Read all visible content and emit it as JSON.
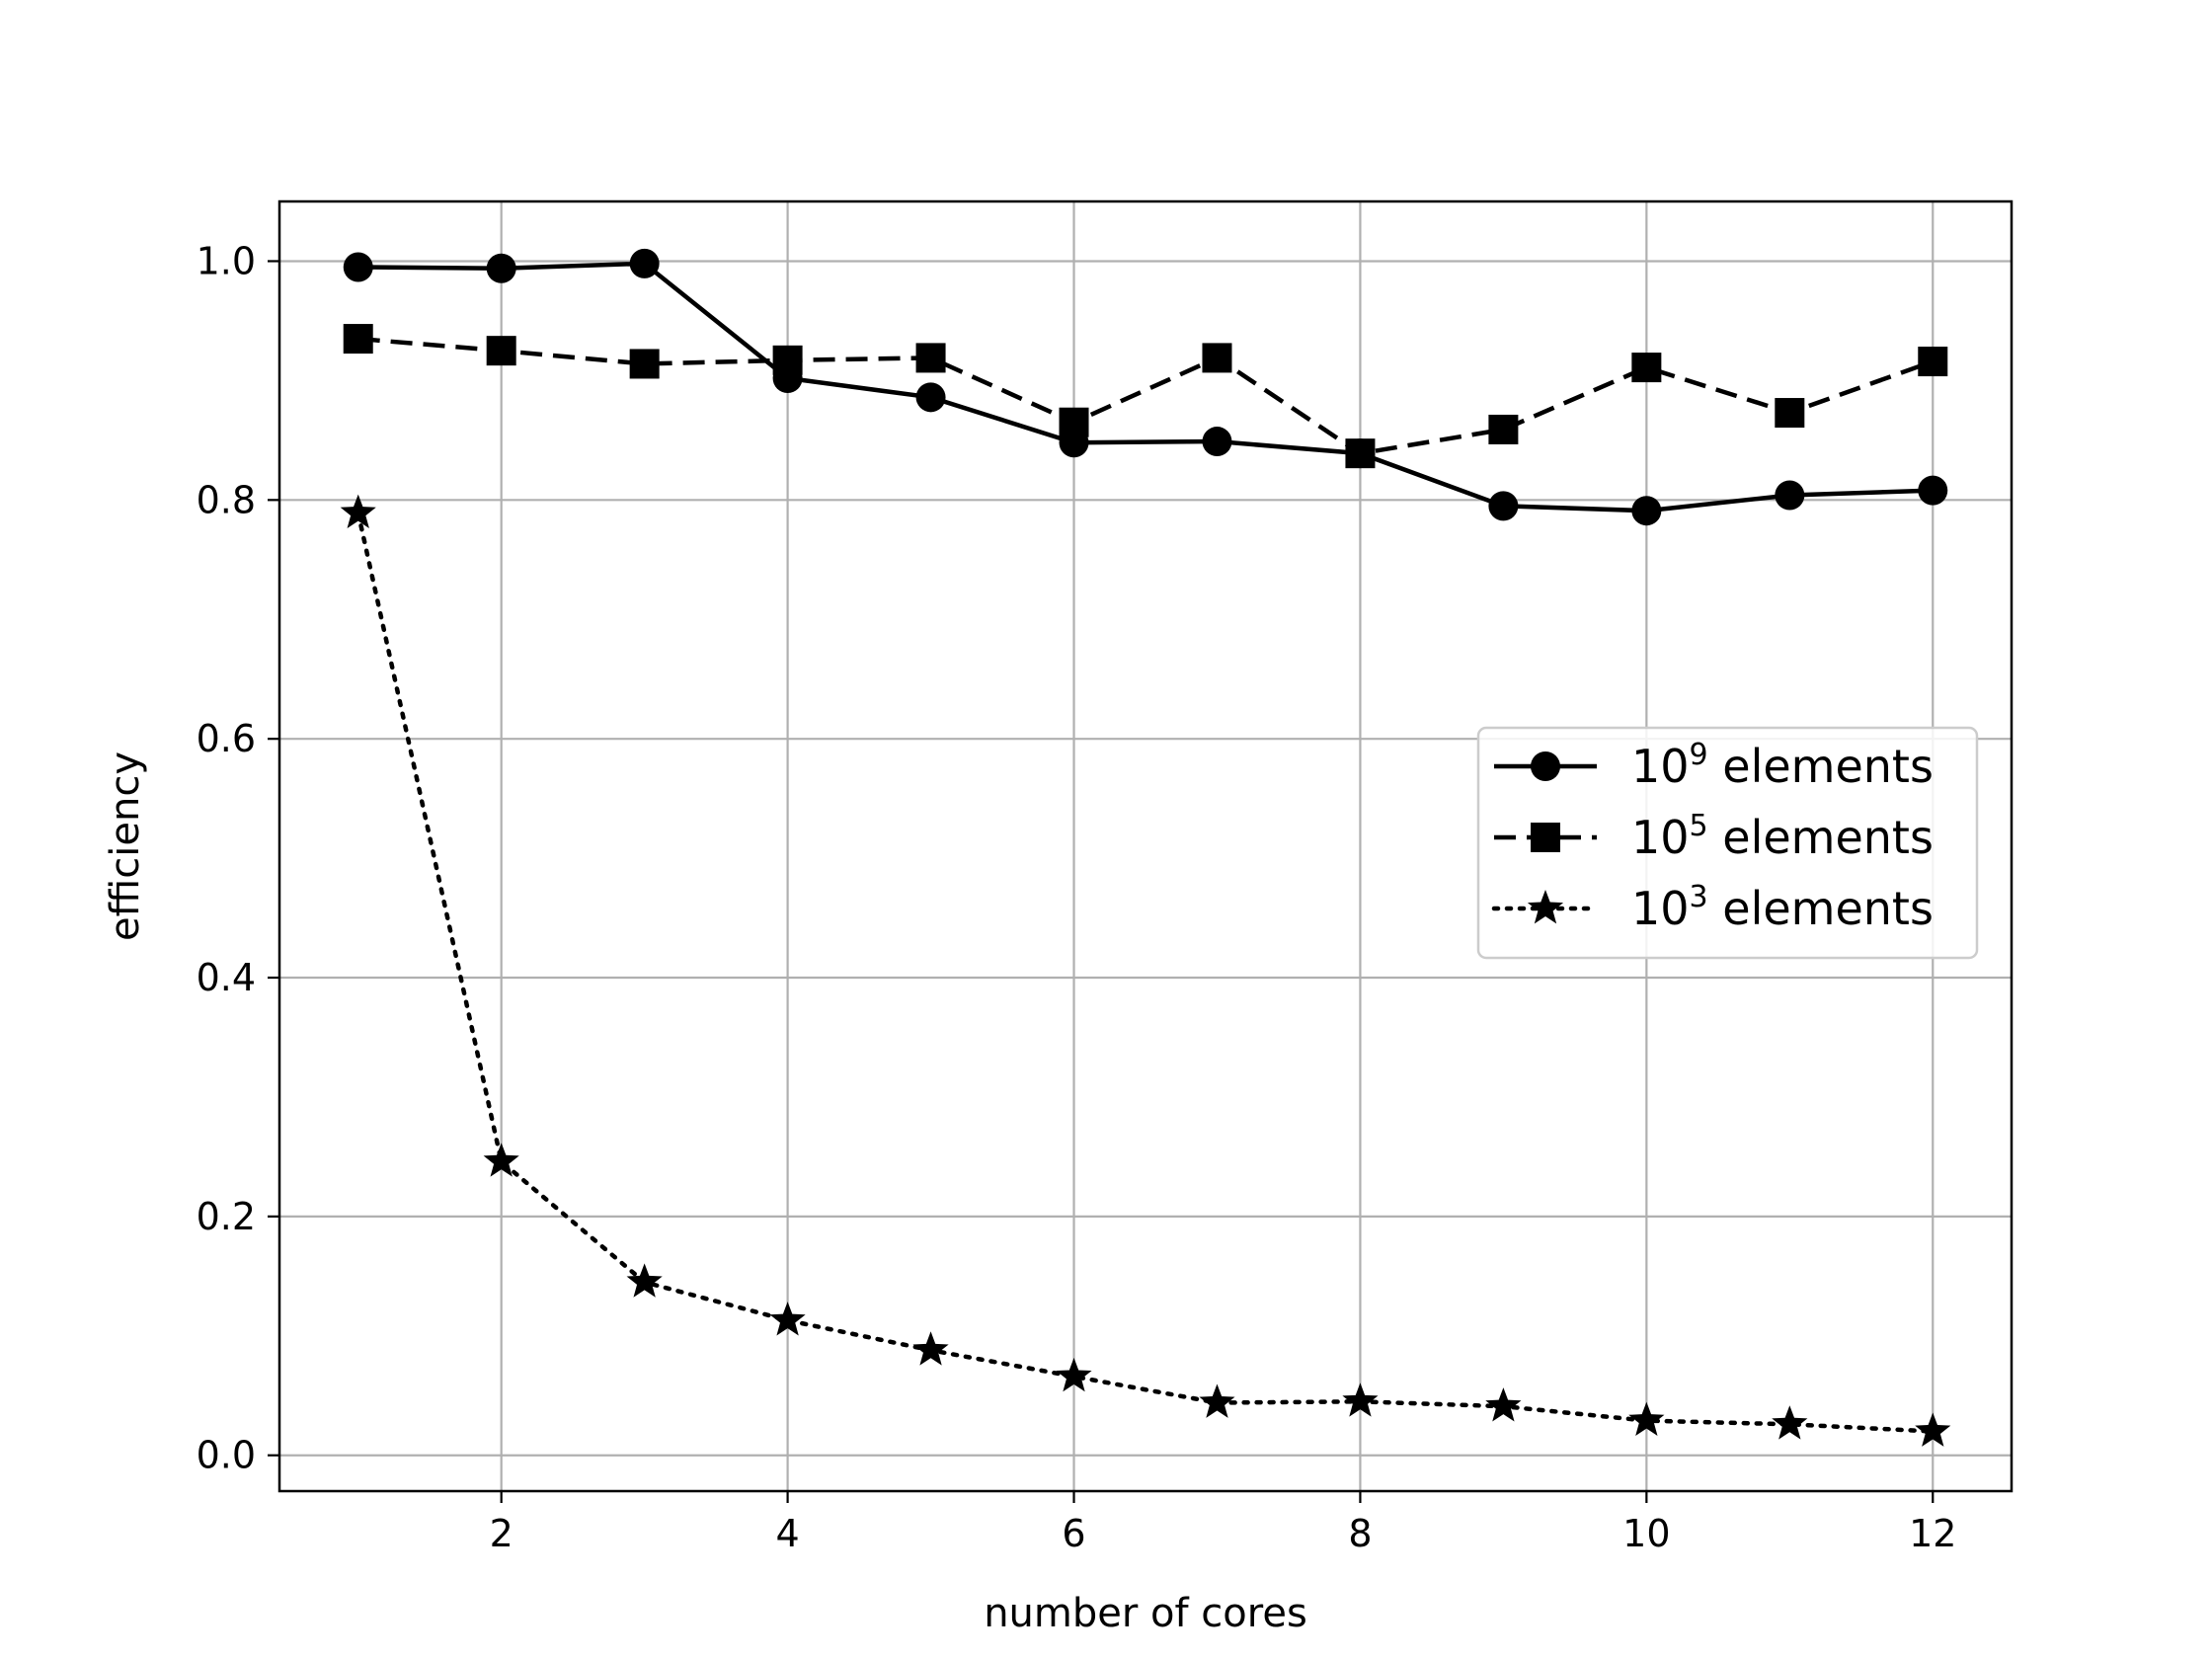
{
  "chart_data": {
    "type": "line",
    "xlabel": "number of cores",
    "ylabel": "efficiency",
    "x": [
      1,
      2,
      3,
      4,
      5,
      6,
      7,
      8,
      9,
      10,
      11,
      12
    ],
    "xlim": [
      0.45,
      12.55
    ],
    "ylim": [
      -0.03,
      1.05
    ],
    "xticks": [
      2,
      4,
      6,
      8,
      10,
      12
    ],
    "xtick_labels": [
      "2",
      "4",
      "6",
      "8",
      "10",
      "12"
    ],
    "yticks": [
      0.0,
      0.2,
      0.4,
      0.6,
      0.8,
      1.0
    ],
    "ytick_labels": [
      "0.0",
      "0.2",
      "0.4",
      "0.6",
      "0.8",
      "1.0"
    ],
    "grid": true,
    "legend_position": "center-right",
    "series": [
      {
        "name": "elements",
        "name_base": "10",
        "name_exp": "9",
        "name_rest": " elements",
        "marker": "circle",
        "linestyle": "solid",
        "color": "#000000",
        "values": [
          0.995,
          0.994,
          0.998,
          0.902,
          0.886,
          0.848,
          0.849,
          0.839,
          0.795,
          0.791,
          0.804,
          0.808
        ]
      },
      {
        "name": "elements",
        "name_base": "10",
        "name_exp": "5",
        "name_rest": " elements",
        "marker": "square",
        "linestyle": "dashed",
        "color": "#000000",
        "values": [
          0.935,
          0.925,
          0.914,
          0.917,
          0.919,
          0.865,
          0.919,
          0.839,
          0.859,
          0.911,
          0.873,
          0.916
        ]
      },
      {
        "name": "elements",
        "name_base": "10",
        "name_exp": "3",
        "name_rest": " elements",
        "marker": "star",
        "linestyle": "dotted",
        "color": "#000000",
        "values": [
          0.789,
          0.246,
          0.145,
          0.113,
          0.088,
          0.066,
          0.044,
          0.045,
          0.041,
          0.029,
          0.026,
          0.02
        ]
      }
    ]
  }
}
